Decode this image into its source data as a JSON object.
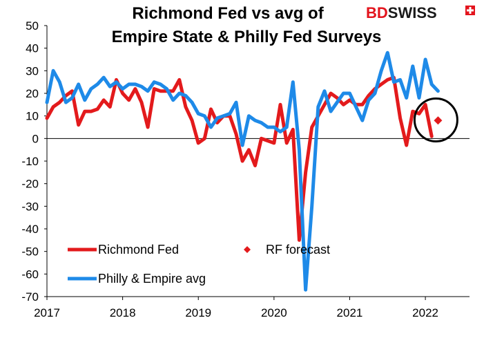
{
  "brand": {
    "name_bd": "BD",
    "name_swiss": "SWISS",
    "color_bd": "#e3141d",
    "color_swiss": "#1a1a1a",
    "flag_icon": "swiss-cross-icon"
  },
  "chart_data": {
    "type": "line",
    "title": "Richmond Fed vs avg of",
    "subtitle": "Empire State & Philly Fed Surveys",
    "xlabel": "",
    "ylabel": "",
    "x_ticks": [
      "2017",
      "2018",
      "2019",
      "2020",
      "2021",
      "2022"
    ],
    "x_range": [
      2017.0,
      2022.583
    ],
    "y_ticks": [
      "50",
      "40",
      "30",
      "20",
      "10",
      "0",
      "-10",
      "-20",
      "-30",
      "-40",
      "-50",
      "-60",
      "-70"
    ],
    "ylim": [
      -70,
      50
    ],
    "grid": false,
    "zero_line": true,
    "highlight_circle": true,
    "legend": {
      "placement": "lower-left",
      "entries": [
        {
          "label": "Richmond Fed",
          "series": "Richmond Fed",
          "marker": "line"
        },
        {
          "label": "RF forecast",
          "series": "RF forecast",
          "marker": "diamond"
        },
        {
          "label": "Philly & Empire avg",
          "series": "Philly & Empire avg",
          "marker": "line"
        }
      ]
    },
    "series": [
      {
        "name": "Richmond Fed",
        "color": "#e31a1c",
        "x": [
          2017.0,
          2017.083,
          2017.167,
          2017.25,
          2017.333,
          2017.417,
          2017.5,
          2017.583,
          2017.667,
          2017.75,
          2017.833,
          2017.917,
          2018.0,
          2018.083,
          2018.167,
          2018.25,
          2018.333,
          2018.417,
          2018.5,
          2018.583,
          2018.667,
          2018.75,
          2018.833,
          2018.917,
          2019.0,
          2019.083,
          2019.167,
          2019.25,
          2019.333,
          2019.417,
          2019.5,
          2019.583,
          2019.667,
          2019.75,
          2019.833,
          2019.917,
          2020.0,
          2020.083,
          2020.167,
          2020.25,
          2020.333,
          2020.417,
          2020.5,
          2020.583,
          2020.667,
          2020.75,
          2020.833,
          2020.917,
          2021.0,
          2021.083,
          2021.167,
          2021.25,
          2021.333,
          2021.417,
          2021.5,
          2021.583,
          2021.667,
          2021.75,
          2021.833,
          2021.917,
          2022.0,
          2022.083
        ],
        "values": [
          9,
          14,
          16,
          19,
          21,
          6,
          12,
          12,
          13,
          17,
          14,
          26,
          20,
          17,
          22,
          16,
          5,
          22,
          21,
          21,
          21,
          26,
          14,
          8,
          -2,
          0,
          13,
          7,
          10,
          10,
          2,
          -10,
          -5,
          -12,
          0,
          -1,
          -2,
          15,
          -2,
          4,
          -45,
          -15,
          5,
          10,
          15,
          20,
          18,
          15,
          17,
          15,
          15,
          19,
          22,
          24,
          26,
          27,
          9,
          -3,
          12,
          11,
          15,
          1
        ]
      },
      {
        "name": "RF forecast",
        "color": "#e31a1c",
        "x": [
          2022.167
        ],
        "values": [
          8
        ]
      },
      {
        "name": "Philly & Empire avg",
        "color": "#1e8ae8",
        "x": [
          2017.0,
          2017.083,
          2017.167,
          2017.25,
          2017.333,
          2017.417,
          2017.5,
          2017.583,
          2017.667,
          2017.75,
          2017.833,
          2017.917,
          2018.0,
          2018.083,
          2018.167,
          2018.25,
          2018.333,
          2018.417,
          2018.5,
          2018.583,
          2018.667,
          2018.75,
          2018.833,
          2018.917,
          2019.0,
          2019.083,
          2019.167,
          2019.25,
          2019.333,
          2019.417,
          2019.5,
          2019.583,
          2019.667,
          2019.75,
          2019.833,
          2019.917,
          2020.0,
          2020.083,
          2020.167,
          2020.25,
          2020.333,
          2020.417,
          2020.5,
          2020.583,
          2020.667,
          2020.75,
          2020.833,
          2020.917,
          2021.0,
          2021.083,
          2021.167,
          2021.25,
          2021.333,
          2021.417,
          2021.5,
          2021.583,
          2021.667,
          2021.75,
          2021.833,
          2021.917,
          2022.0,
          2022.083,
          2022.167
        ],
        "values": [
          16,
          30,
          25,
          16,
          18,
          24,
          17,
          22,
          24,
          27,
          23,
          25,
          22,
          24,
          24,
          23,
          21,
          25,
          24,
          22,
          17,
          20,
          19,
          16,
          11,
          10,
          5,
          9,
          10,
          11,
          16,
          -3,
          10,
          8,
          7,
          5,
          5,
          3,
          5,
          25,
          -5,
          -67,
          -30,
          14,
          21,
          12,
          16,
          20,
          20,
          14,
          8,
          17,
          20,
          30,
          38,
          25,
          26,
          18,
          32,
          18,
          35,
          24,
          21
        ]
      }
    ]
  }
}
